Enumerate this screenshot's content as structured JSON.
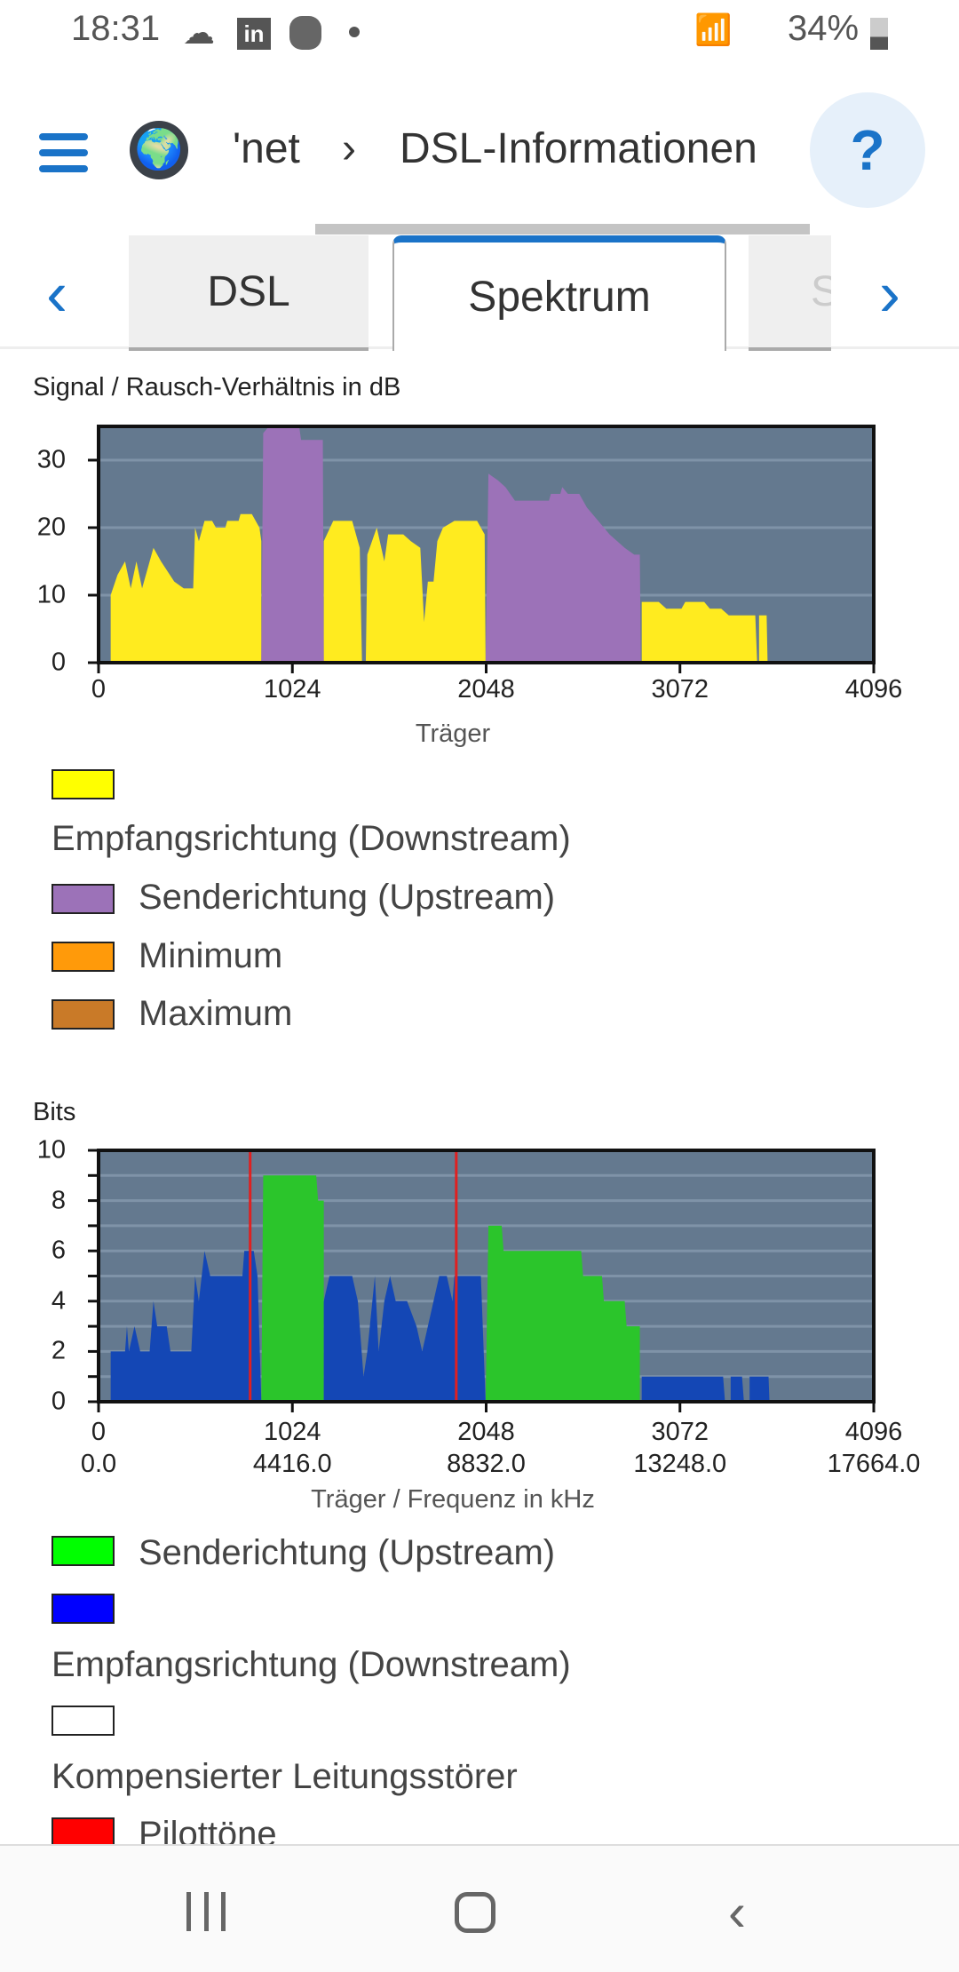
{
  "status": {
    "time": "18:31",
    "battery": "34%",
    "icons": [
      "cloud-icon",
      "linkedin-icon",
      "burger-king-icon",
      "dot-icon",
      "wifi-icon",
      "signal-icon",
      "battery-icon"
    ]
  },
  "header": {
    "breadcrumb_prev": "'net",
    "separator": "›",
    "title": "DSL-Informationen",
    "help": "?"
  },
  "tabs": [
    {
      "label": "DSL",
      "active": false
    },
    {
      "label": "Spektrum",
      "active": true
    },
    {
      "label": "Statıs",
      "active": false
    }
  ],
  "tab_nav": {
    "prev": "‹",
    "next": "›"
  },
  "chart_data": [
    {
      "type": "area",
      "title": "Signal / Rausch-Verhältnis in dB",
      "xlabel": "Träger",
      "ylabel": "",
      "xlim": [
        0,
        4096
      ],
      "ylim": [
        0,
        35
      ],
      "xticks": [
        "0",
        "1024",
        "2048",
        "3072",
        "4096"
      ],
      "xtick_values": [
        0,
        1024,
        2048,
        3072,
        4096
      ],
      "yticks": [
        "0",
        "10",
        "20",
        "30"
      ],
      "ytick_values": [
        0,
        10,
        20,
        30
      ],
      "background": "#64798f",
      "series": [
        {
          "name": "Empfangsrichtung (Downstream)",
          "color": "#ffeb1f",
          "legend_color": "#ffff00",
          "segments": [
            [
              [
                64,
                0
              ],
              [
                64,
                10
              ],
              [
                100,
                13
              ],
              [
                140,
                15
              ],
              [
                170,
                11
              ],
              [
                200,
                15
              ],
              [
                230,
                11
              ],
              [
                290,
                17
              ],
              [
                330,
                15
              ],
              [
                400,
                12
              ],
              [
                450,
                11
              ],
              [
                500,
                11
              ],
              [
                510,
                20
              ],
              [
                530,
                18
              ],
              [
                560,
                21
              ],
              [
                600,
                21
              ],
              [
                620,
                20
              ],
              [
                670,
                20
              ],
              [
                680,
                21
              ],
              [
                740,
                21
              ],
              [
                750,
                22
              ],
              [
                810,
                22
              ],
              [
                850,
                20
              ],
              [
                860,
                18
              ],
              [
                860,
                0
              ]
            ],
            [
              [
                1190,
                0
              ],
              [
                1190,
                18
              ],
              [
                1240,
                21
              ],
              [
                1340,
                21
              ],
              [
                1380,
                17
              ],
              [
                1392,
                0
              ]
            ],
            [
              [
                1412,
                0
              ],
              [
                1420,
                16
              ],
              [
                1470,
                20
              ],
              [
                1510,
                15
              ],
              [
                1530,
                19
              ],
              [
                1610,
                19
              ],
              [
                1650,
                18
              ],
              [
                1700,
                17
              ],
              [
                1720,
                6
              ],
              [
                1740,
                12
              ],
              [
                1770,
                12
              ],
              [
                1790,
                18
              ],
              [
                1820,
                20
              ],
              [
                1880,
                21
              ],
              [
                2000,
                21
              ],
              [
                2040,
                19
              ],
              [
                2045,
                0
              ]
            ],
            [
              [
                2870,
                0
              ],
              [
                2870,
                9
              ],
              [
                2960,
                9
              ],
              [
                3000,
                8
              ],
              [
                3080,
                8
              ],
              [
                3100,
                9
              ],
              [
                3200,
                9
              ],
              [
                3230,
                8
              ],
              [
                3290,
                8
              ],
              [
                3330,
                7
              ],
              [
                3470,
                7
              ],
              [
                3480,
                0
              ],
              [
                3490,
                0
              ],
              [
                3490,
                7
              ],
              [
                3530,
                7
              ],
              [
                3535,
                0
              ]
            ]
          ]
        },
        {
          "name": "Senderichtung (Upstream)",
          "color": "#9c72b8",
          "legend_color": "#9c72b8",
          "segments": [
            [
              [
                860,
                0
              ],
              [
                870,
                34
              ],
              [
                900,
                35
              ],
              [
                1060,
                35
              ],
              [
                1070,
                33
              ],
              [
                1185,
                33
              ],
              [
                1190,
                0
              ]
            ],
            [
              [
                2045,
                0
              ],
              [
                2060,
                28
              ],
              [
                2110,
                27
              ],
              [
                2150,
                26
              ],
              [
                2200,
                24
              ],
              [
                2380,
                24
              ],
              [
                2390,
                25
              ],
              [
                2440,
                25
              ],
              [
                2450,
                26
              ],
              [
                2480,
                25
              ],
              [
                2540,
                25
              ],
              [
                2580,
                23
              ],
              [
                2640,
                21
              ],
              [
                2700,
                19
              ],
              [
                2780,
                17
              ],
              [
                2830,
                16
              ],
              [
                2860,
                16
              ],
              [
                2865,
                0
              ]
            ]
          ]
        },
        {
          "name": "Minimum",
          "color": "#ff9a0a",
          "legend_color": "#ff9a0a",
          "segments": []
        },
        {
          "name": "Maximum",
          "color": "#c97a28",
          "legend_color": "#c97a28",
          "segments": []
        }
      ]
    },
    {
      "type": "area",
      "title": "Bits",
      "xlabel": "Träger / Frequenz in kHz",
      "ylabel": "",
      "xlim": [
        0,
        4096
      ],
      "ylim": [
        0,
        10
      ],
      "xticks": [
        "0",
        "1024",
        "2048",
        "3072",
        "4096"
      ],
      "xticks_secondary": [
        "0.0",
        "4416.0",
        "8832.0",
        "13248.0",
        "17664.0"
      ],
      "xtick_values": [
        0,
        1024,
        2048,
        3072,
        4096
      ],
      "yticks": [
        "0",
        "2",
        "4",
        "6",
        "8",
        "10"
      ],
      "ytick_values": [
        0,
        2,
        4,
        6,
        8,
        10
      ],
      "background": "#64798f",
      "series": [
        {
          "name": "Senderichtung (Upstream)",
          "color": "#2bc52b",
          "legend_color": "#00ff00",
          "segments": [
            [
              [
                860,
                0
              ],
              [
                870,
                9
              ],
              [
                1150,
                9
              ],
              [
                1160,
                8
              ],
              [
                1190,
                8
              ],
              [
                1190,
                0
              ]
            ],
            [
              [
                2045,
                0
              ],
              [
                2060,
                7
              ],
              [
                2130,
                7
              ],
              [
                2140,
                6
              ],
              [
                2550,
                6
              ],
              [
                2560,
                5
              ],
              [
                2660,
                5
              ],
              [
                2670,
                4
              ],
              [
                2780,
                4
              ],
              [
                2790,
                3
              ],
              [
                2860,
                3
              ],
              [
                2860,
                0
              ]
            ]
          ]
        },
        {
          "name": "Empfangsrichtung (Downstream)",
          "color": "#1447b5",
          "legend_color": "#0000ff",
          "segments": [
            [
              [
                64,
                0
              ],
              [
                64,
                2
              ],
              [
                140,
                2
              ],
              [
                150,
                3
              ],
              [
                160,
                2
              ],
              [
                190,
                3
              ],
              [
                220,
                2
              ],
              [
                270,
                2
              ],
              [
                290,
                4
              ],
              [
                310,
                3
              ],
              [
                360,
                3
              ],
              [
                380,
                2
              ],
              [
                490,
                2
              ],
              [
                510,
                5
              ],
              [
                530,
                4
              ],
              [
                560,
                6
              ],
              [
                590,
                5
              ],
              [
                760,
                5
              ],
              [
                770,
                6
              ],
              [
                820,
                6
              ],
              [
                840,
                5
              ],
              [
                860,
                0
              ]
            ],
            [
              [
                1190,
                0
              ],
              [
                1190,
                4
              ],
              [
                1220,
                5
              ],
              [
                1340,
                5
              ],
              [
                1370,
                4
              ],
              [
                1400,
                1
              ],
              [
                1420,
                2
              ],
              [
                1460,
                5
              ],
              [
                1480,
                2
              ],
              [
                1510,
                4
              ],
              [
                1540,
                5
              ],
              [
                1570,
                4
              ],
              [
                1630,
                4
              ],
              [
                1680,
                3
              ],
              [
                1710,
                2
              ],
              [
                1770,
                4
              ],
              [
                1800,
                5
              ],
              [
                1840,
                5
              ],
              [
                1870,
                4
              ],
              [
                1880,
                5
              ],
              [
                2020,
                5
              ],
              [
                2045,
                0
              ]
            ],
            [
              [
                2870,
                0
              ],
              [
                2870,
                1
              ],
              [
                3300,
                1
              ],
              [
                3310,
                0
              ],
              [
                3340,
                0
              ],
              [
                3340,
                1
              ],
              [
                3400,
                1
              ],
              [
                3410,
                0
              ],
              [
                3440,
                0
              ],
              [
                3440,
                1
              ],
              [
                3540,
                1
              ],
              [
                3545,
                0
              ]
            ]
          ]
        },
        {
          "name": "Kompensierter Leitungsstörer",
          "color": "#ffffff",
          "legend_color": "#ffffff",
          "segments": []
        },
        {
          "name": "Pilottöne",
          "color": "#e02020",
          "legend_color": "#ff0000",
          "carriers": [
            801,
            1890
          ]
        }
      ]
    }
  ],
  "nav": {
    "recent": "recent-apps-icon",
    "home": "home-icon",
    "back": "back-icon"
  }
}
